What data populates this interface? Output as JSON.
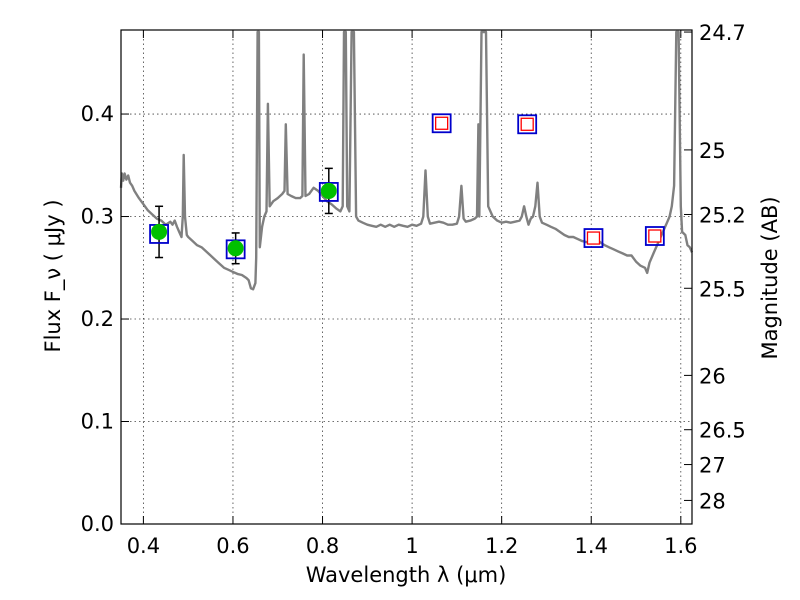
{
  "chart_data": {
    "type": "scatter",
    "xlabel": "Wavelength  λ (μm)",
    "ylabel": "Flux  F_ν  ( μJy )",
    "ylabel_right": "Magnitude (AB)",
    "xlim": [
      0.35,
      1.625
    ],
    "ylim": [
      0.0,
      0.482
    ],
    "grid": true,
    "x_ticks": [
      {
        "value": 0.4,
        "label": "0.4"
      },
      {
        "value": 0.6,
        "label": "0.6"
      },
      {
        "value": 0.8,
        "label": "0.8"
      },
      {
        "value": 1.0,
        "label": "1"
      },
      {
        "value": 1.2,
        "label": "1.2"
      },
      {
        "value": 1.4,
        "label": "1.4"
      },
      {
        "value": 1.6,
        "label": "1.6"
      }
    ],
    "y_ticks": [
      {
        "value": 0.0,
        "label": "0.0"
      },
      {
        "value": 0.1,
        "label": "0.1"
      },
      {
        "value": 0.2,
        "label": "0.2"
      },
      {
        "value": 0.3,
        "label": "0.3"
      },
      {
        "value": 0.4,
        "label": "0.4"
      }
    ],
    "right_ticks": [
      {
        "flux": 0.48,
        "label": "24.7"
      },
      {
        "flux": 0.365,
        "label": "25"
      },
      {
        "flux": 0.302,
        "label": "25.2"
      },
      {
        "flux": 0.23,
        "label": "25.5"
      },
      {
        "flux": 0.145,
        "label": "26"
      },
      {
        "flux": 0.092,
        "label": "26.5"
      },
      {
        "flux": 0.058,
        "label": "27"
      },
      {
        "flux": 0.023,
        "label": "28"
      }
    ],
    "series": [
      {
        "kind": "model_spectrum",
        "color": "#808080",
        "points": [
          [
            0.35,
            0.328
          ],
          [
            0.352,
            0.342
          ],
          [
            0.355,
            0.335
          ],
          [
            0.358,
            0.342
          ],
          [
            0.362,
            0.336
          ],
          [
            0.366,
            0.34
          ],
          [
            0.37,
            0.333
          ],
          [
            0.375,
            0.33
          ],
          [
            0.38,
            0.325
          ],
          [
            0.39,
            0.318
          ],
          [
            0.4,
            0.312
          ],
          [
            0.41,
            0.306
          ],
          [
            0.42,
            0.302
          ],
          [
            0.43,
            0.298
          ],
          [
            0.44,
            0.296
          ],
          [
            0.45,
            0.292
          ],
          [
            0.46,
            0.295
          ],
          [
            0.465,
            0.292
          ],
          [
            0.47,
            0.296
          ],
          [
            0.475,
            0.29
          ],
          [
            0.48,
            0.285
          ],
          [
            0.485,
            0.28
          ],
          [
            0.488,
            0.3
          ],
          [
            0.49,
            0.36
          ],
          [
            0.493,
            0.3
          ],
          [
            0.497,
            0.282
          ],
          [
            0.5,
            0.28
          ],
          [
            0.51,
            0.276
          ],
          [
            0.52,
            0.272
          ],
          [
            0.53,
            0.27
          ],
          [
            0.54,
            0.266
          ],
          [
            0.55,
            0.262
          ],
          [
            0.56,
            0.258
          ],
          [
            0.57,
            0.254
          ],
          [
            0.58,
            0.25
          ],
          [
            0.59,
            0.248
          ],
          [
            0.6,
            0.246
          ],
          [
            0.61,
            0.244
          ],
          [
            0.62,
            0.243
          ],
          [
            0.63,
            0.24
          ],
          [
            0.635,
            0.238
          ],
          [
            0.64,
            0.23
          ],
          [
            0.645,
            0.229
          ],
          [
            0.65,
            0.235
          ],
          [
            0.652,
            0.26
          ],
          [
            0.655,
            0.48
          ],
          [
            0.658,
            0.48
          ],
          [
            0.66,
            0.27
          ],
          [
            0.665,
            0.29
          ],
          [
            0.67,
            0.3
          ],
          [
            0.675,
            0.305
          ],
          [
            0.678,
            0.41
          ],
          [
            0.682,
            0.31
          ],
          [
            0.69,
            0.315
          ],
          [
            0.7,
            0.318
          ],
          [
            0.705,
            0.32
          ],
          [
            0.71,
            0.322
          ],
          [
            0.715,
            0.325
          ],
          [
            0.718,
            0.39
          ],
          [
            0.722,
            0.322
          ],
          [
            0.73,
            0.32
          ],
          [
            0.74,
            0.318
          ],
          [
            0.75,
            0.318
          ],
          [
            0.755,
            0.32
          ],
          [
            0.758,
            0.458
          ],
          [
            0.762,
            0.32
          ],
          [
            0.77,
            0.322
          ],
          [
            0.78,
            0.328
          ],
          [
            0.79,
            0.325
          ],
          [
            0.8,
            0.32
          ],
          [
            0.81,
            0.315
          ],
          [
            0.82,
            0.312
          ],
          [
            0.83,
            0.308
          ],
          [
            0.84,
            0.305
          ],
          [
            0.845,
            0.31
          ],
          [
            0.848,
            0.48
          ],
          [
            0.852,
            0.48
          ],
          [
            0.855,
            0.31
          ],
          [
            0.86,
            0.305
          ],
          [
            0.865,
            0.48
          ],
          [
            0.87,
            0.48
          ],
          [
            0.875,
            0.3
          ],
          [
            0.88,
            0.296
          ],
          [
            0.89,
            0.294
          ],
          [
            0.9,
            0.292
          ],
          [
            0.91,
            0.291
          ],
          [
            0.92,
            0.29
          ],
          [
            0.93,
            0.292
          ],
          [
            0.94,
            0.29
          ],
          [
            0.95,
            0.292
          ],
          [
            0.96,
            0.29
          ],
          [
            0.97,
            0.292
          ],
          [
            0.98,
            0.291
          ],
          [
            0.99,
            0.29
          ],
          [
            1.0,
            0.292
          ],
          [
            1.01,
            0.291
          ],
          [
            1.02,
            0.293
          ],
          [
            1.025,
            0.3
          ],
          [
            1.03,
            0.345
          ],
          [
            1.035,
            0.3
          ],
          [
            1.04,
            0.293
          ],
          [
            1.05,
            0.294
          ],
          [
            1.06,
            0.295
          ],
          [
            1.07,
            0.294
          ],
          [
            1.08,
            0.292
          ],
          [
            1.09,
            0.292
          ],
          [
            1.1,
            0.293
          ],
          [
            1.105,
            0.3
          ],
          [
            1.11,
            0.33
          ],
          [
            1.115,
            0.298
          ],
          [
            1.12,
            0.295
          ],
          [
            1.13,
            0.296
          ],
          [
            1.14,
            0.298
          ],
          [
            1.145,
            0.3
          ],
          [
            1.148,
            0.39
          ],
          [
            1.15,
            0.3
          ],
          [
            1.155,
            0.48
          ],
          [
            1.165,
            0.48
          ],
          [
            1.17,
            0.31
          ],
          [
            1.18,
            0.3
          ],
          [
            1.19,
            0.296
          ],
          [
            1.2,
            0.294
          ],
          [
            1.21,
            0.295
          ],
          [
            1.22,
            0.294
          ],
          [
            1.23,
            0.295
          ],
          [
            1.24,
            0.296
          ],
          [
            1.245,
            0.3
          ],
          [
            1.25,
            0.31
          ],
          [
            1.255,
            0.3
          ],
          [
            1.26,
            0.292
          ],
          [
            1.265,
            0.298
          ],
          [
            1.27,
            0.3
          ],
          [
            1.275,
            0.31
          ],
          [
            1.28,
            0.333
          ],
          [
            1.285,
            0.3
          ],
          [
            1.29,
            0.294
          ],
          [
            1.3,
            0.292
          ],
          [
            1.31,
            0.29
          ],
          [
            1.32,
            0.288
          ],
          [
            1.33,
            0.285
          ],
          [
            1.34,
            0.282
          ],
          [
            1.35,
            0.28
          ],
          [
            1.36,
            0.28
          ],
          [
            1.37,
            0.278
          ],
          [
            1.38,
            0.276
          ],
          [
            1.39,
            0.275
          ],
          [
            1.4,
            0.276
          ],
          [
            1.41,
            0.278
          ],
          [
            1.42,
            0.275
          ],
          [
            1.43,
            0.272
          ],
          [
            1.44,
            0.27
          ],
          [
            1.45,
            0.268
          ],
          [
            1.46,
            0.266
          ],
          [
            1.47,
            0.264
          ],
          [
            1.48,
            0.262
          ],
          [
            1.49,
            0.262
          ],
          [
            1.5,
            0.256
          ],
          [
            1.51,
            0.252
          ],
          [
            1.52,
            0.25
          ],
          [
            1.525,
            0.245
          ],
          [
            1.53,
            0.255
          ],
          [
            1.54,
            0.265
          ],
          [
            1.55,
            0.275
          ],
          [
            1.56,
            0.285
          ],
          [
            1.57,
            0.295
          ],
          [
            1.575,
            0.3
          ],
          [
            1.58,
            0.31
          ],
          [
            1.585,
            0.33
          ],
          [
            1.59,
            0.48
          ],
          [
            1.595,
            0.48
          ],
          [
            1.6,
            0.31
          ],
          [
            1.603,
            0.285
          ],
          [
            1.61,
            0.282
          ],
          [
            1.615,
            0.272
          ],
          [
            1.62,
            0.27
          ],
          [
            1.625,
            0.265
          ]
        ]
      },
      {
        "kind": "observed_photometry",
        "fill": "#00c000",
        "points": [
          {
            "x": 0.435,
            "y": 0.285,
            "yerr": 0.025
          },
          {
            "x": 0.606,
            "y": 0.269,
            "yerr": 0.015
          },
          {
            "x": 0.814,
            "y": 0.325,
            "yerr": 0.022
          }
        ]
      },
      {
        "kind": "model_bandpass",
        "stroke": "#0000cc",
        "points": [
          {
            "x": 0.435,
            "y": 0.283
          },
          {
            "x": 0.606,
            "y": 0.268
          },
          {
            "x": 0.814,
            "y": 0.324
          },
          {
            "x": 1.066,
            "y": 0.391
          },
          {
            "x": 1.257,
            "y": 0.39
          },
          {
            "x": 1.405,
            "y": 0.279
          },
          {
            "x": 1.542,
            "y": 0.281
          }
        ]
      },
      {
        "kind": "upper_limit",
        "stroke": "#ff0000",
        "points": [
          {
            "x": 1.066,
            "y": 0.391
          },
          {
            "x": 1.257,
            "y": 0.39
          },
          {
            "x": 1.405,
            "y": 0.279
          },
          {
            "x": 1.542,
            "y": 0.281
          }
        ]
      }
    ]
  },
  "colors": {
    "model_line": "#808080",
    "observed_fill": "#00c000",
    "bandpass_box": "#0000cc",
    "hollow_box": "#ff0000",
    "errorbar": "#000000"
  }
}
